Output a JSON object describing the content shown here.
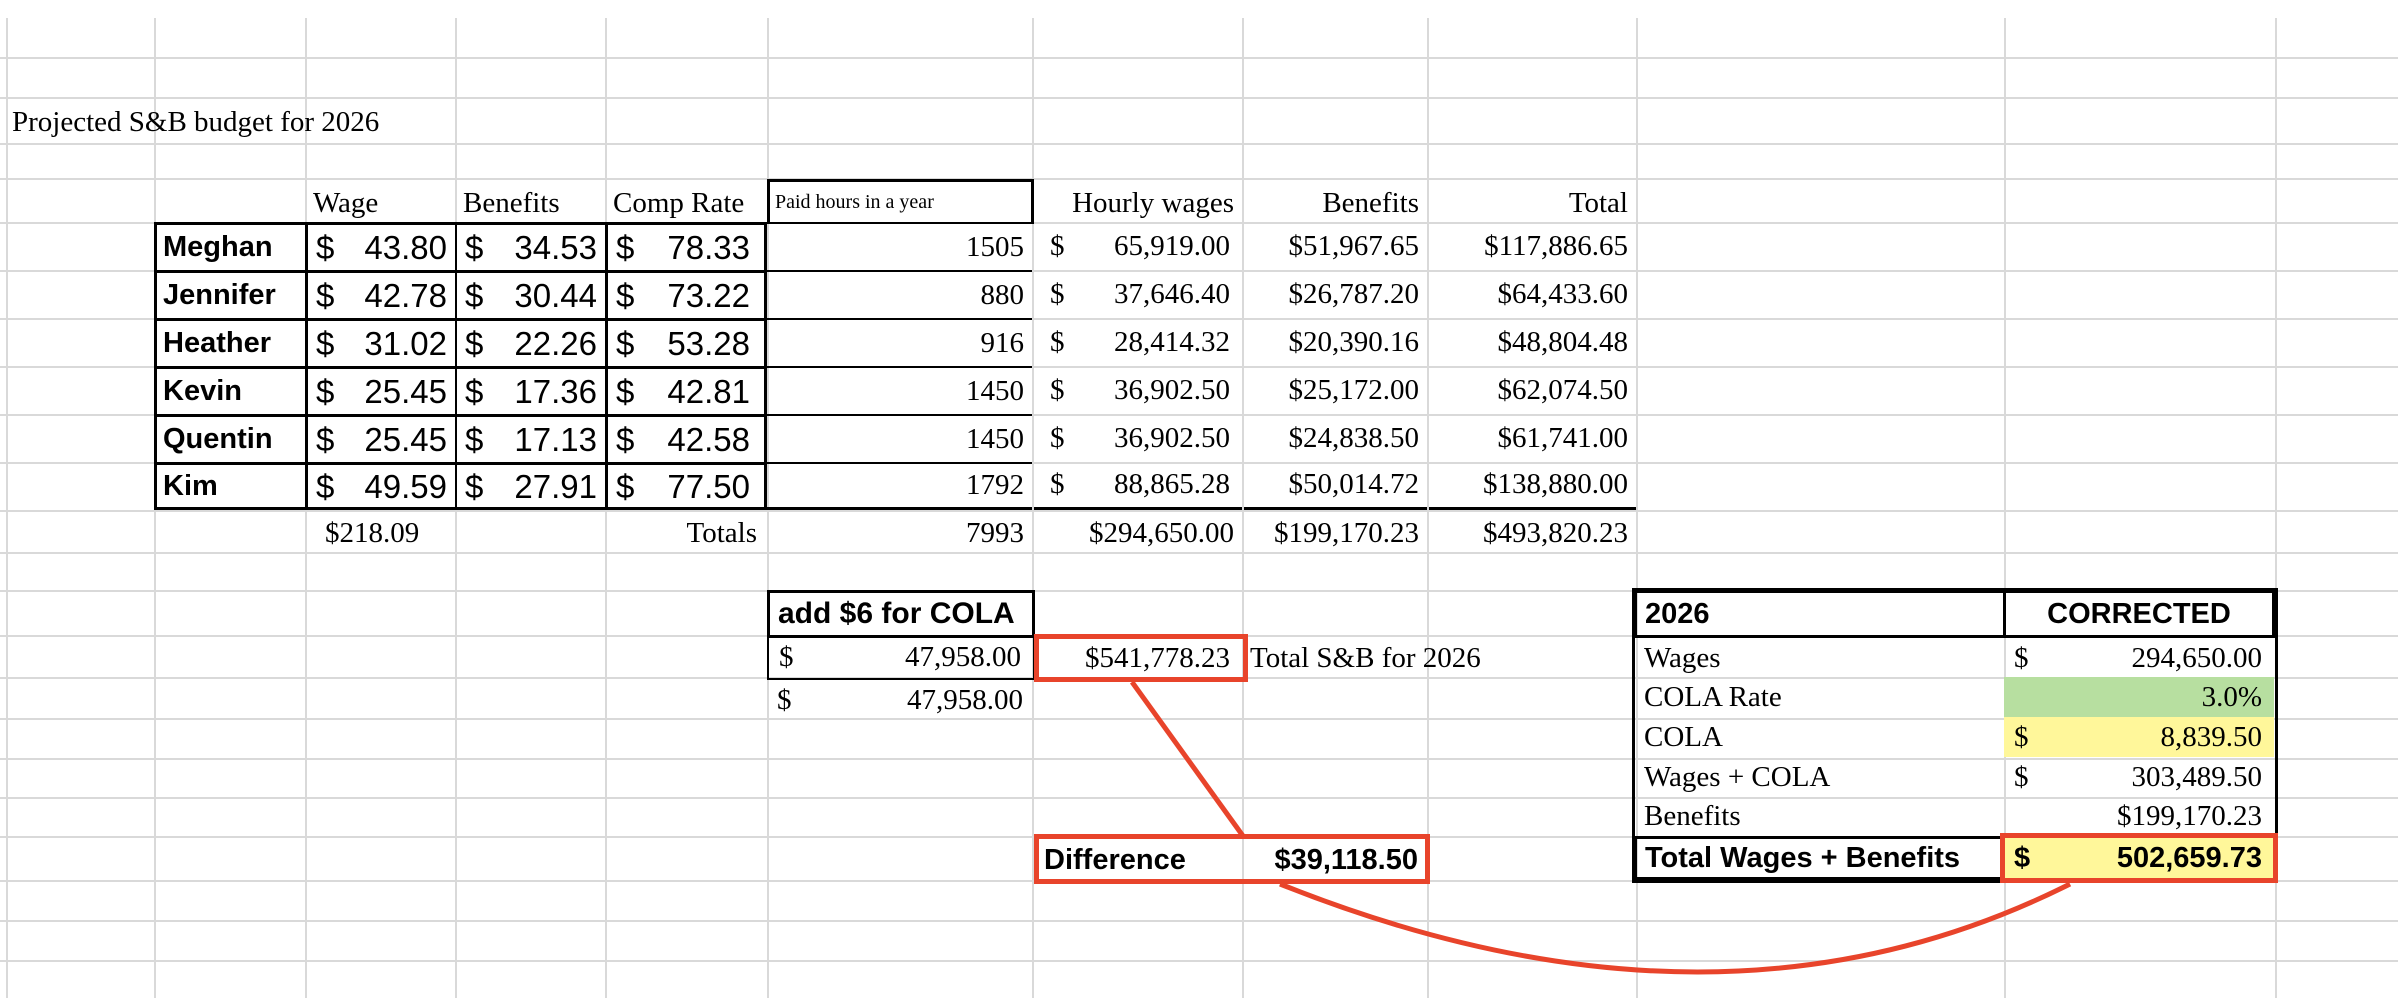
{
  "sheet_title": "Projected S&B budget for 2026",
  "headers": {
    "wage": "Wage",
    "benefits": "Benefits",
    "comp_rate": "Comp Rate",
    "paid_hours": "Paid hours in a year",
    "hourly_wages": "Hourly wages",
    "benefits2": "Benefits",
    "total": "Total"
  },
  "employees": [
    {
      "name": "Meghan",
      "wage": "43.80",
      "benefits": "34.53",
      "comp_rate": "78.33",
      "hours": "1505",
      "hourly_wages": "65,919.00",
      "benefits_total": "$51,967.65",
      "total": "$117,886.65"
    },
    {
      "name": "Jennifer",
      "wage": "42.78",
      "benefits": "30.44",
      "comp_rate": "73.22",
      "hours": "880",
      "hourly_wages": "37,646.40",
      "benefits_total": "$26,787.20",
      "total": "$64,433.60"
    },
    {
      "name": "Heather",
      "wage": "31.02",
      "benefits": "22.26",
      "comp_rate": "53.28",
      "hours": "916",
      "hourly_wages": "28,414.32",
      "benefits_total": "$20,390.16",
      "total": "$48,804.48"
    },
    {
      "name": "Kevin",
      "wage": "25.45",
      "benefits": "17.36",
      "comp_rate": "42.81",
      "hours": "1450",
      "hourly_wages": "36,902.50",
      "benefits_total": "$25,172.00",
      "total": "$62,074.50"
    },
    {
      "name": "Quentin",
      "wage": "25.45",
      "benefits": "17.13",
      "comp_rate": "42.58",
      "hours": "1450",
      "hourly_wages": "36,902.50",
      "benefits_total": "$24,838.50",
      "total": "$61,741.00"
    },
    {
      "name": "Kim",
      "wage": "49.59",
      "benefits": "27.91",
      "comp_rate": "77.50",
      "hours": "1792",
      "hourly_wages": "88,865.28",
      "benefits_total": "$50,014.72",
      "total": "$138,880.00"
    }
  ],
  "totals_row": {
    "wage_sum": "$218.09",
    "label": "Totals",
    "hours": "7993",
    "hourly_wages": "$294,650.00",
    "benefits": "$199,170.23",
    "total": "$493,820.23"
  },
  "cola_block": {
    "header": "add $6 for COLA",
    "row1_symbol": "$",
    "row1_value": "47,958.00",
    "row2_symbol": "$",
    "row2_value": "47,958.00",
    "total_value": "$541,778.23",
    "total_label": "Total S&B for 2026"
  },
  "difference": {
    "label": "Difference",
    "value": "$39,118.50"
  },
  "summary": {
    "header_left": "2026",
    "header_right": "CORRECTED",
    "rows": [
      {
        "label": "Wages",
        "symbol": "$",
        "value": "294,650.00"
      },
      {
        "label": "COLA Rate",
        "symbol": "",
        "value": "3.0%"
      },
      {
        "label": "COLA",
        "symbol": "$",
        "value": "8,839.50"
      },
      {
        "label": "Wages + COLA",
        "symbol": "$",
        "value": "303,489.50"
      },
      {
        "label": "Benefits",
        "symbol": "",
        "value": "$199,170.23"
      }
    ],
    "total_label": "Total Wages + Benefits",
    "total_symbol": "$",
    "total_value": "502,659.73"
  },
  "colors": {
    "annotation_red": "#e8442b",
    "cola_rate_fill": "#b7dfa0",
    "highlight_yellow": "#fff79a",
    "gridline": "#d9d9d9"
  },
  "currency_symbol": "$"
}
